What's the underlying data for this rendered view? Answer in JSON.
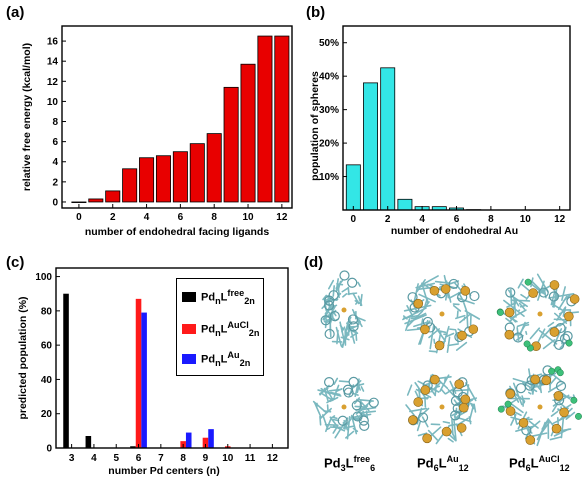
{
  "panels": {
    "a": "(a)",
    "b": "(b)",
    "c": "(c)",
    "d": "(d)"
  },
  "colors": {
    "panel_a_bar": "#e80000",
    "panel_b_bar": "#33e6e6",
    "free": "#000000",
    "aucl": "#ff1a1a",
    "au": "#1a1aff",
    "carbon": "#7ab8bf",
    "gold": "#d9a030",
    "chlorine": "#3dc07a",
    "pd": "#c8c8c8"
  },
  "chart_data": [
    {
      "type": "bar",
      "panel": "(a)",
      "xlabel": "number of endohedral facing ligands",
      "ylabel": "relative free energy (kcal/mol)",
      "x": [
        0,
        1,
        2,
        3,
        4,
        5,
        6,
        7,
        8,
        9,
        10,
        11,
        12
      ],
      "values": [
        0.0,
        0.3,
        1.1,
        3.3,
        4.4,
        4.6,
        5.0,
        5.8,
        6.8,
        11.4,
        13.7,
        16.5,
        16.5
      ],
      "xticks": [
        "0",
        "2",
        "4",
        "6",
        "8",
        "10",
        "12"
      ],
      "yticks": [
        "0",
        "2",
        "4",
        "6",
        "8",
        "10",
        "12",
        "14",
        "16"
      ],
      "xlim": [
        -1,
        12.6
      ],
      "ylim": [
        -0.6,
        17.5
      ]
    },
    {
      "type": "bar",
      "panel": "(b)",
      "xlabel": "number of endohedral Au",
      "ylabel": "population of spheres",
      "x": [
        0,
        1,
        2,
        3,
        4,
        5,
        6,
        7,
        8,
        9,
        10,
        11,
        12
      ],
      "values": [
        13.5,
        38.0,
        42.5,
        3.2,
        1.0,
        1.0,
        0.6,
        0.1,
        0,
        0,
        0,
        0,
        0
      ],
      "xticks": [
        "0",
        "2",
        "4",
        "6",
        "8",
        "10",
        "12"
      ],
      "yticks": [
        "10%",
        "20%",
        "30%",
        "40%",
        "50%"
      ],
      "xlim": [
        -0.6,
        12.6
      ],
      "ylim": [
        0,
        55
      ]
    },
    {
      "type": "bar",
      "panel": "(c)",
      "xlabel": "number Pd centers (n)",
      "ylabel": "predicted population (%)",
      "categories": [
        "3",
        "4",
        "5",
        "6",
        "7",
        "8",
        "9",
        "10",
        "11",
        "12"
      ],
      "series": [
        {
          "name": "PdnLfree2n",
          "values": [
            90,
            7,
            0,
            1,
            0,
            0,
            0,
            0,
            0,
            0
          ]
        },
        {
          "name": "PdnLAuCl2n",
          "values": [
            0,
            0,
            0,
            87,
            0,
            4,
            6,
            1,
            0,
            0
          ]
        },
        {
          "name": "PdnLAu2n",
          "values": [
            0,
            0,
            0,
            79,
            0,
            9,
            11,
            0,
            0,
            0
          ]
        }
      ],
      "yticks": [
        "0",
        "20",
        "40",
        "60",
        "80",
        "100"
      ],
      "ylim": [
        0,
        105
      ]
    }
  ],
  "legend_c": [
    {
      "base": "Pd",
      "sub1": "n",
      "mid": "L",
      "sup": "free",
      "sub2": "2n"
    },
    {
      "base": "Pd",
      "sub1": "n",
      "mid": "L",
      "sup": "AuCl",
      "sub2": "2n"
    },
    {
      "base": "Pd",
      "sub1": "n",
      "mid": "L",
      "sup": "Au",
      "sub2": "2n"
    }
  ],
  "structures": [
    {
      "base": "Pd",
      "n": "3",
      "mid": "L",
      "sup": "free",
      "count": "6"
    },
    {
      "base": "Pd",
      "n": "6",
      "mid": "L",
      "sup": "Au",
      "count": "12"
    },
    {
      "base": "Pd",
      "n": "6",
      "mid": "L",
      "sup": "AuCl",
      "count": "12"
    }
  ]
}
